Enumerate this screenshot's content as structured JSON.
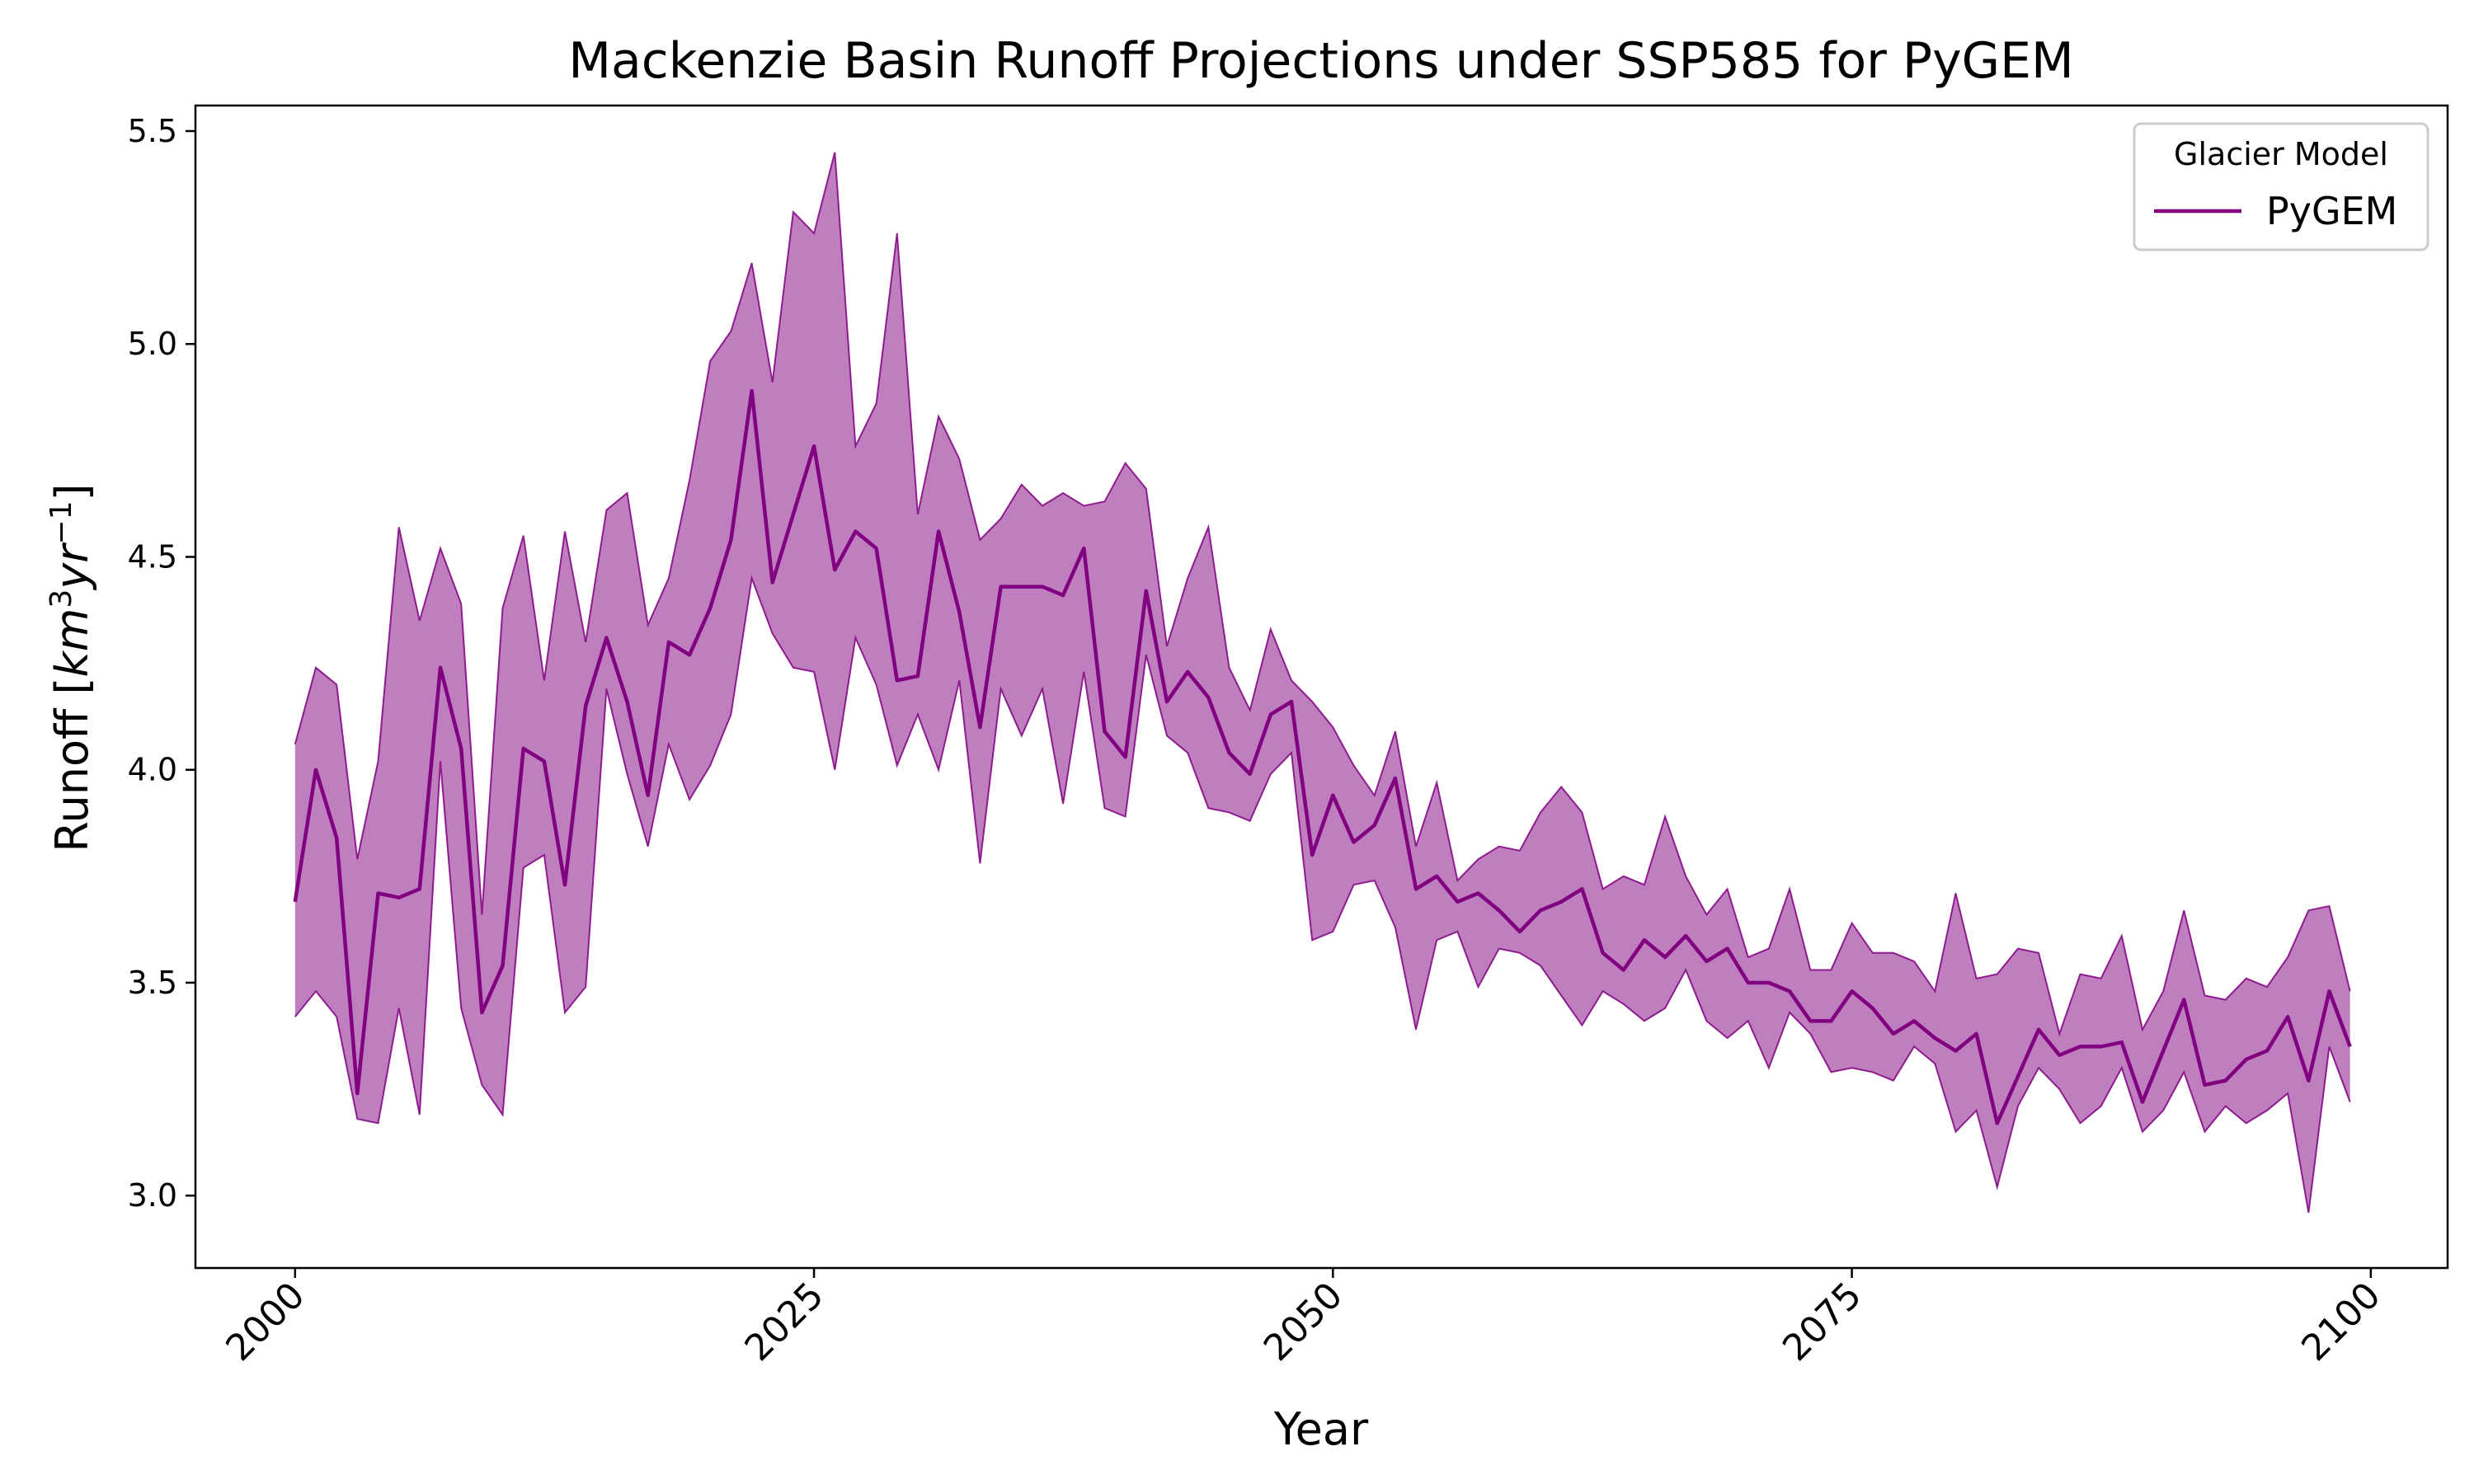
{
  "chart_data": {
    "type": "line",
    "title": "Mackenzie Basin Runoff Projections under SSP585 for PyGEM",
    "xlabel": "Year",
    "ylabel_main": "Runoff [",
    "ylabel_unit_km": "km",
    "ylabel_unit_km_sup": "3",
    "ylabel_unit_yr": "yr",
    "ylabel_unit_yr_sup": "−1",
    "ylabel_close": "]",
    "xlim": [
      1995.2,
      2103.7
    ],
    "ylim": [
      2.83,
      5.56
    ],
    "x_ticks": [
      2000,
      2025,
      2050,
      2075,
      2100
    ],
    "y_ticks": [
      3.0,
      3.5,
      4.0,
      4.5,
      5.0,
      5.5
    ],
    "x_tick_labels": [
      "2000",
      "2025",
      "2050",
      "2075",
      "2100"
    ],
    "y_tick_labels": [
      "3.0",
      "3.5",
      "4.0",
      "4.5",
      "5.0",
      "5.5"
    ],
    "grid": false,
    "legend": {
      "title": "Glacier Model",
      "position": "top-right",
      "entries": [
        "PyGEM"
      ]
    },
    "series": [
      {
        "name": "PyGEM",
        "color": "#800080",
        "band_color": "#800080",
        "x_start": 2000,
        "x_step": 1,
        "mean": [
          3.69,
          4.0,
          3.84,
          3.24,
          3.71,
          3.7,
          3.72,
          4.24,
          4.05,
          3.43,
          3.54,
          4.05,
          4.02,
          3.73,
          4.15,
          4.31,
          4.16,
          3.94,
          4.3,
          4.27,
          4.38,
          4.54,
          4.89,
          4.44,
          4.6,
          4.76,
          4.47,
          4.56,
          4.52,
          4.21,
          4.22,
          4.56,
          4.37,
          4.1,
          4.43,
          4.43,
          4.43,
          4.41,
          4.52,
          4.09,
          4.03,
          4.42,
          4.16,
          4.23,
          4.17,
          4.04,
          3.99,
          4.13,
          4.16,
          3.8,
          3.94,
          3.83,
          3.87,
          3.98,
          3.72,
          3.75,
          3.69,
          3.71,
          3.67,
          3.62,
          3.67,
          3.69,
          3.72,
          3.57,
          3.53,
          3.6,
          3.56,
          3.61,
          3.55,
          3.58,
          3.5,
          3.5,
          3.48,
          3.41,
          3.41,
          3.48,
          3.44,
          3.38,
          3.41,
          3.37,
          3.34,
          3.38,
          3.17,
          3.28,
          3.39,
          3.33,
          3.35,
          3.35,
          3.36,
          3.22,
          3.34,
          3.46,
          3.26,
          3.27,
          3.32,
          3.34,
          3.42,
          3.27,
          3.48,
          3.35
        ],
        "upper": [
          4.06,
          4.24,
          4.2,
          3.79,
          4.02,
          4.57,
          4.35,
          4.52,
          4.39,
          3.66,
          4.38,
          4.55,
          4.21,
          4.56,
          4.3,
          4.61,
          4.65,
          4.34,
          4.45,
          4.68,
          4.96,
          5.03,
          5.19,
          4.91,
          5.31,
          5.26,
          5.45,
          4.76,
          4.86,
          5.26,
          4.6,
          4.83,
          4.73,
          4.54,
          4.59,
          4.67,
          4.62,
          4.65,
          4.62,
          4.63,
          4.72,
          4.66,
          4.29,
          4.45,
          4.57,
          4.24,
          4.14,
          4.33,
          4.21,
          4.16,
          4.1,
          4.01,
          3.94,
          4.09,
          3.82,
          3.97,
          3.74,
          3.79,
          3.82,
          3.81,
          3.9,
          3.96,
          3.9,
          3.72,
          3.75,
          3.73,
          3.89,
          3.75,
          3.66,
          3.72,
          3.56,
          3.58,
          3.72,
          3.53,
          3.53,
          3.64,
          3.57,
          3.57,
          3.55,
          3.48,
          3.71,
          3.51,
          3.52,
          3.58,
          3.57,
          3.38,
          3.52,
          3.51,
          3.61,
          3.39,
          3.48,
          3.67,
          3.47,
          3.46,
          3.51,
          3.49,
          3.56,
          3.67,
          3.68,
          3.48
        ],
        "lower": [
          3.42,
          3.48,
          3.42,
          3.18,
          3.17,
          3.44,
          3.19,
          4.02,
          3.44,
          3.26,
          3.19,
          3.77,
          3.8,
          3.43,
          3.49,
          4.19,
          3.99,
          3.82,
          4.06,
          3.93,
          4.01,
          4.13,
          4.45,
          4.32,
          4.24,
          4.23,
          4.0,
          4.31,
          4.2,
          4.01,
          4.13,
          4.0,
          4.21,
          3.78,
          4.19,
          4.08,
          4.19,
          3.92,
          4.23,
          3.91,
          3.89,
          4.27,
          4.08,
          4.04,
          3.91,
          3.9,
          3.88,
          3.99,
          4.04,
          3.6,
          3.62,
          3.73,
          3.74,
          3.63,
          3.39,
          3.6,
          3.62,
          3.49,
          3.58,
          3.57,
          3.54,
          3.47,
          3.4,
          3.48,
          3.45,
          3.41,
          3.44,
          3.53,
          3.41,
          3.37,
          3.41,
          3.3,
          3.43,
          3.38,
          3.29,
          3.3,
          3.29,
          3.27,
          3.35,
          3.31,
          3.15,
          3.2,
          3.02,
          3.21,
          3.3,
          3.25,
          3.17,
          3.21,
          3.3,
          3.15,
          3.2,
          3.29,
          3.15,
          3.21,
          3.17,
          3.2,
          3.24,
          2.96,
          3.35,
          3.22
        ]
      }
    ]
  }
}
